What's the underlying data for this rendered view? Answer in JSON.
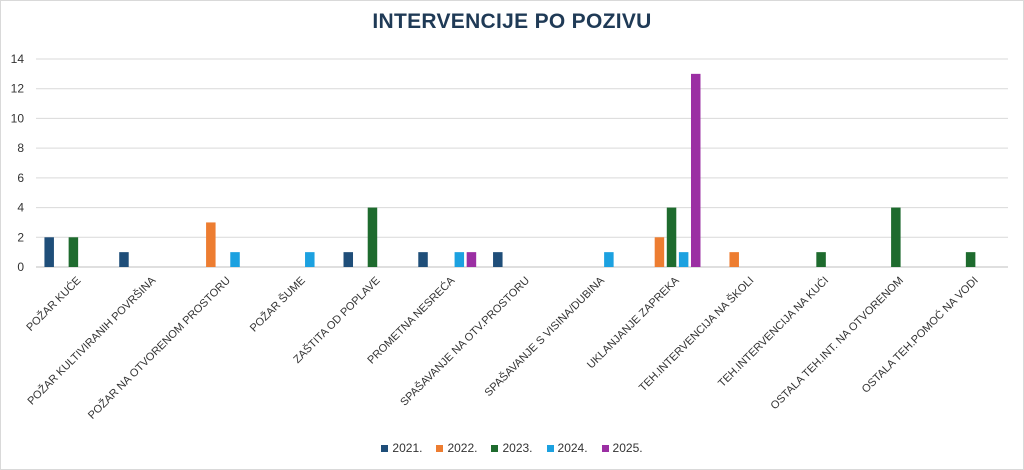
{
  "chart_data": {
    "type": "bar",
    "title": "INTERVENCIJE PO POZIVU",
    "xlabel": "",
    "ylabel": "",
    "ylim": [
      0,
      14
    ],
    "yticks": [
      0,
      2,
      4,
      6,
      8,
      10,
      12,
      14
    ],
    "grid": true,
    "legend_position": "bottom",
    "categories": [
      "POŽAR KUĆE",
      "POŽAR KULTIVIRANIH POVRŠINA",
      "POŽAR NA OTVORENOM PROSTORU",
      "POŽAR ŠUME",
      "ZAŠTITA OD POPLAVE",
      "PROMETNA NESREĆA",
      "SPAŠAVANJE NA OTV.PROSTORU",
      "SPAŠAVANJE S VISINA/DUBINA",
      "UKLANJANJE ZAPREKA",
      "TEH.INTERVENCIJA NA ŠKOLI",
      "TEH.INTERVENCIJA NA KUĆI",
      "OSTALA TEH.INT. NA OTVORENOM",
      "OSTALA TEH.POMOĆ NA VODI"
    ],
    "series": [
      {
        "name": "2021.",
        "color": "#1f4e79",
        "values": [
          2,
          1,
          0,
          0,
          1,
          1,
          1,
          0,
          0,
          0,
          0,
          0,
          0
        ]
      },
      {
        "name": "2022.",
        "color": "#ed7d31",
        "values": [
          0,
          0,
          3,
          0,
          0,
          0,
          0,
          0,
          2,
          1,
          0,
          0,
          0
        ]
      },
      {
        "name": "2023.",
        "color": "#1e6b2e",
        "values": [
          2,
          0,
          0,
          0,
          4,
          0,
          0,
          0,
          4,
          0,
          1,
          4,
          1
        ]
      },
      {
        "name": "2024.",
        "color": "#1ca1e0",
        "values": [
          0,
          0,
          1,
          1,
          0,
          1,
          0,
          1,
          1,
          0,
          0,
          0,
          0
        ]
      },
      {
        "name": "2025.",
        "color": "#9b2fa3",
        "values": [
          0,
          0,
          0,
          0,
          0,
          1,
          0,
          0,
          13,
          0,
          0,
          0,
          0
        ]
      }
    ]
  }
}
